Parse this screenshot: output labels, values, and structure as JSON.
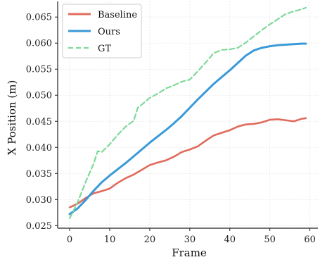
{
  "chart_data": {
    "type": "line",
    "title": "",
    "xlabel": "Frame",
    "ylabel": "X Position (m)",
    "xlim": [
      -3,
      62
    ],
    "ylim": [
      0.0245,
      0.068
    ],
    "x_ticks": [
      0,
      10,
      20,
      30,
      40,
      50,
      60
    ],
    "y_ticks": [
      0.025,
      0.03,
      0.035,
      0.04,
      0.045,
      0.05,
      0.055,
      0.06,
      0.065
    ],
    "x_tick_labels": [
      "0",
      "10",
      "20",
      "30",
      "40",
      "50",
      "60"
    ],
    "y_tick_labels": [
      "0.025",
      "0.030",
      "0.035",
      "0.040",
      "0.045",
      "0.050",
      "0.055",
      "0.060",
      "0.065"
    ],
    "grid": true,
    "legend_position": "top-left",
    "series": [
      {
        "name": "Baseline",
        "color": "#e06b5c",
        "style": "solid",
        "x": [
          0,
          2,
          4,
          6,
          8,
          10,
          12,
          14,
          16,
          18,
          20,
          22,
          24,
          26,
          28,
          30,
          32,
          34,
          36,
          38,
          40,
          42,
          44,
          46,
          48,
          50,
          52,
          54,
          56,
          58,
          59
        ],
        "values": [
          0.0285,
          0.0292,
          0.0303,
          0.0312,
          0.0316,
          0.0321,
          0.0332,
          0.0341,
          0.0348,
          0.0357,
          0.0366,
          0.0371,
          0.0375,
          0.0382,
          0.0391,
          0.0396,
          0.0402,
          0.0413,
          0.0423,
          0.0428,
          0.0433,
          0.044,
          0.0444,
          0.0445,
          0.0448,
          0.0453,
          0.0454,
          0.0452,
          0.045,
          0.0455,
          0.0456
        ]
      },
      {
        "name": "Ours",
        "color": "#3a9ad9",
        "style": "solid",
        "x": [
          0,
          2,
          4,
          6,
          8,
          10,
          12,
          14,
          16,
          18,
          20,
          22,
          24,
          26,
          28,
          30,
          32,
          34,
          36,
          38,
          40,
          42,
          44,
          46,
          48,
          50,
          52,
          54,
          56,
          58,
          59
        ],
        "values": [
          0.0272,
          0.0283,
          0.0299,
          0.0317,
          0.0333,
          0.0346,
          0.0358,
          0.037,
          0.0383,
          0.0396,
          0.0409,
          0.0421,
          0.0433,
          0.0446,
          0.046,
          0.0476,
          0.0492,
          0.0507,
          0.0522,
          0.0535,
          0.0548,
          0.0562,
          0.0576,
          0.0586,
          0.0591,
          0.0594,
          0.0596,
          0.0597,
          0.0598,
          0.0599,
          0.0599
        ]
      },
      {
        "name": "GT",
        "color": "#7fd99a",
        "style": "dashed",
        "x": [
          0,
          2,
          4,
          6,
          7,
          8,
          10,
          12,
          14,
          16,
          17,
          18,
          20,
          22,
          24,
          26,
          28,
          29,
          30,
          32,
          34,
          36,
          38,
          40,
          42,
          44,
          46,
          48,
          50,
          52,
          54,
          56,
          58,
          59
        ],
        "values": [
          0.0264,
          0.0295,
          0.0334,
          0.0369,
          0.0393,
          0.0391,
          0.0406,
          0.0424,
          0.044,
          0.0451,
          0.0476,
          0.0482,
          0.0495,
          0.0503,
          0.0513,
          0.0519,
          0.0526,
          0.0528,
          0.053,
          0.0546,
          0.0563,
          0.0581,
          0.0587,
          0.0588,
          0.0591,
          0.0601,
          0.0613,
          0.0625,
          0.0636,
          0.0646,
          0.0656,
          0.0661,
          0.0665,
          0.0668
        ]
      }
    ]
  }
}
